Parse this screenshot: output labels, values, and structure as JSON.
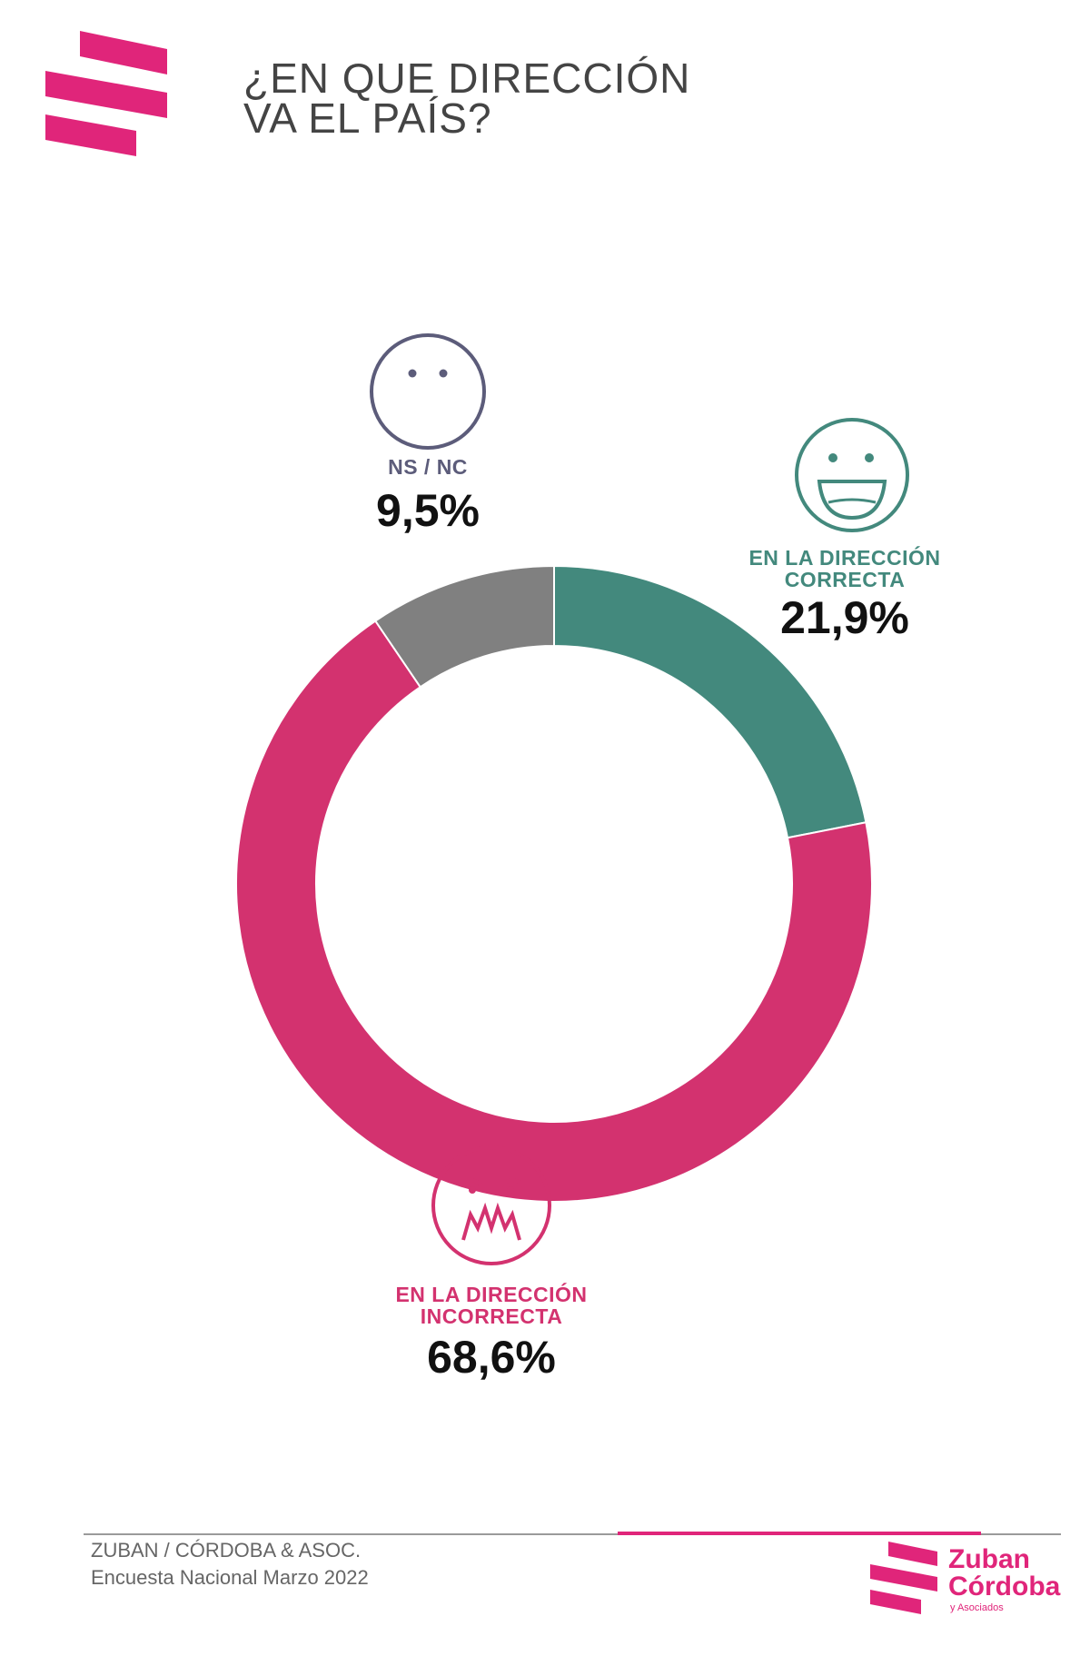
{
  "title": {
    "line1": "¿EN QUE DIRECCIÓN",
    "line2": "VA EL PAÍS?"
  },
  "chart_data": {
    "type": "pie",
    "donut": true,
    "title": "¿EN QUE DIRECCIÓN VA EL PAÍS?",
    "slices": [
      {
        "label_line1": "EN LA DIRECCIÓN",
        "label_line2": "CORRECTA",
        "value": 21.9,
        "display": "21,9%",
        "color": "#43897d",
        "face": "smile-face-icon"
      },
      {
        "label_line1": "EN LA DIRECCIÓN",
        "label_line2": "INCORRECTA",
        "value": 68.6,
        "display": "68,6%",
        "color": "#d3326f",
        "face": "angry-face-icon"
      },
      {
        "label_line1": "NS /  NC",
        "label_line2": "",
        "value": 9.5,
        "display": "9,5%",
        "color": "#808080",
        "face": "neutral-face-icon"
      }
    ]
  },
  "footer": {
    "line1": "ZUBAN / CÓRDOBA & ASOC.",
    "line2": "Encuesta Nacional Marzo 2022"
  },
  "brand": {
    "name_line1": "Zuban",
    "name_line2": "Córdoba",
    "name_line3": "y Asociados",
    "accent_color": "#e0257a"
  }
}
